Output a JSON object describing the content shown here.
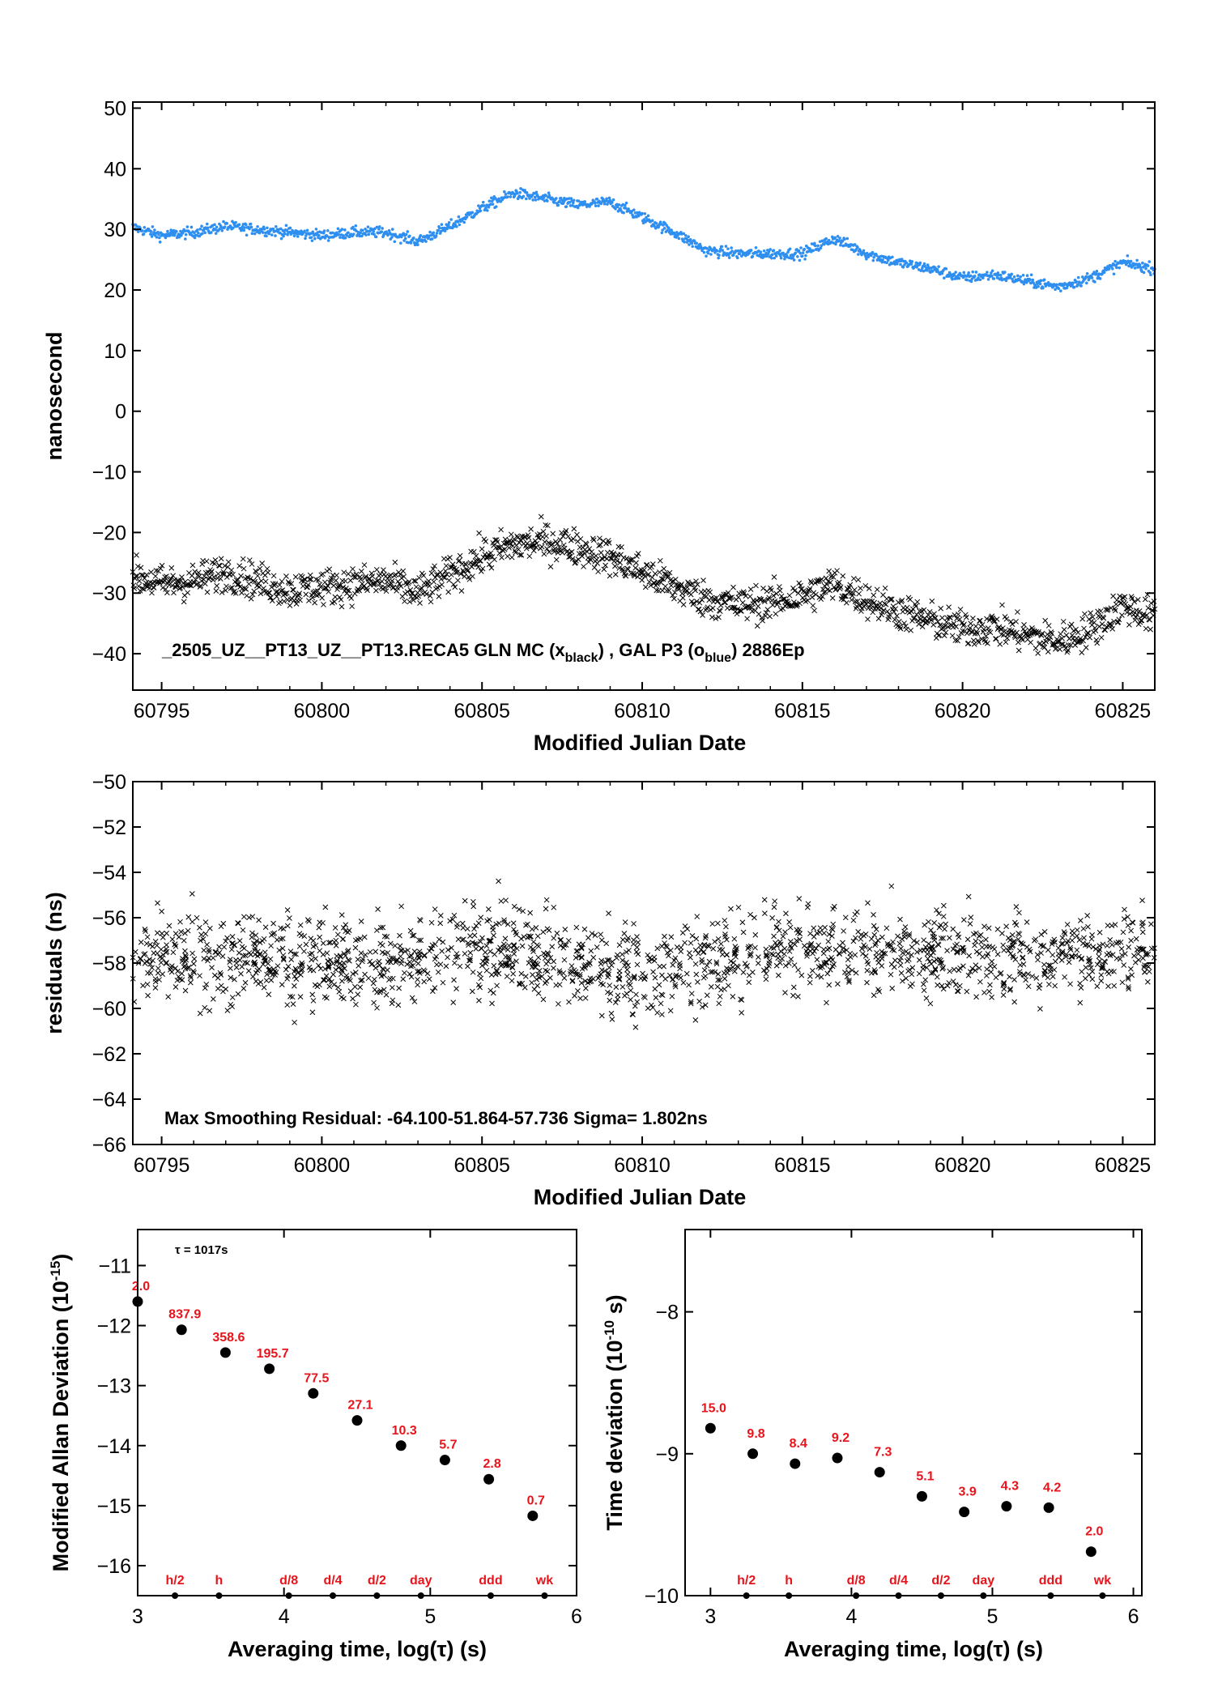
{
  "colors": {
    "black": "#000000",
    "blue": "#2f8ff0",
    "red": "#e8141b"
  },
  "panel1": {
    "ylabel": "nanosecond",
    "xlabel": "Modified Julian Date",
    "xlim": [
      60794.1,
      60826.0
    ],
    "ylim": [
      -46,
      51
    ],
    "xticks": [
      60795,
      60800,
      60805,
      60810,
      60815,
      60820,
      60825
    ],
    "yticks": [
      50,
      40,
      30,
      20,
      10,
      0,
      -10,
      -20,
      -30,
      -40
    ],
    "ytick_labels": [
      "50",
      "40",
      "30",
      "20",
      "10",
      "0",
      "−10",
      "−20",
      "−30",
      "−40"
    ],
    "annotation_main": "_2505_UZ__PT13_UZ__PT13.RECA5     GLN MC (x",
    "annotation_sub1": "black",
    "annotation_mid": ") ,  GAL P3 (o",
    "annotation_sub2": "blue",
    "annotation_end": ")  2886Ep"
  },
  "panel2": {
    "ylabel": "residuals (ns)",
    "xlabel": "Modified Julian Date",
    "xlim": [
      60794.1,
      60826.0
    ],
    "ylim": [
      -66,
      -50
    ],
    "xticks": [
      60795,
      60800,
      60805,
      60810,
      60815,
      60820,
      60825
    ],
    "yticks": [
      -50,
      -52,
      -54,
      -56,
      -58,
      -60,
      -62,
      -64,
      -66
    ],
    "ytick_labels": [
      "−50",
      "−52",
      "−54",
      "−56",
      "−58",
      "−60",
      "−62",
      "−64",
      "−66"
    ],
    "annotation": "Max Smoothing Residual: -64.100-51.864-57.736  Sigma= 1.802ns"
  },
  "panel3": {
    "ylabel": "Modified Allan Deviation (10",
    "ylabel_exp": "-15",
    "ylabel_end": ")",
    "xlabel": "Averaging time, log(τ) (s)",
    "tau_note": "τ = 1017s",
    "xlim": [
      3,
      6
    ],
    "ylim": [
      -16.5,
      -10.4
    ],
    "xticks": [
      3,
      4,
      5,
      6
    ],
    "yticks": [
      -11,
      -12,
      -13,
      -14,
      -15,
      -16
    ],
    "ytick_labels": [
      "−11",
      "−12",
      "−13",
      "−14",
      "−15",
      "−16"
    ],
    "period_marks": [
      {
        "label": "h/2",
        "x": 3.255
      },
      {
        "label": "h",
        "x": 3.556
      },
      {
        "label": "d/8",
        "x": 4.033
      },
      {
        "label": "d/4",
        "x": 4.334
      },
      {
        "label": "d/2",
        "x": 4.635
      },
      {
        "label": "day",
        "x": 4.936
      },
      {
        "label": "ddd",
        "x": 5.413
      },
      {
        "label": "wk",
        "x": 5.781
      }
    ]
  },
  "panel4": {
    "ylabel": "Time deviation (10",
    "ylabel_exp": "-10",
    "ylabel_end": " s)",
    "xlabel": "Averaging time, log(τ) (s)",
    "xlim": [
      2.82,
      6.06
    ],
    "ylim": [
      -10.0,
      -7.42
    ],
    "xticks": [
      3,
      4,
      5,
      6
    ],
    "yticks": [
      -8,
      -9,
      -10
    ],
    "ytick_labels": [
      "−8",
      "−9",
      "−10"
    ],
    "period_marks": [
      {
        "label": "h/2",
        "x": 3.255
      },
      {
        "label": "h",
        "x": 3.556
      },
      {
        "label": "d/8",
        "x": 4.033
      },
      {
        "label": "d/4",
        "x": 4.334
      },
      {
        "label": "d/2",
        "x": 4.635
      },
      {
        "label": "day",
        "x": 4.936
      },
      {
        "label": "ddd",
        "x": 5.413
      },
      {
        "label": "wk",
        "x": 5.781
      }
    ]
  },
  "chart_data": [
    {
      "type": "scatter",
      "xlabel": "Modified Julian Date",
      "ylabel": "nanosecond",
      "xlim": [
        60794.1,
        60826.0
      ],
      "ylim": [
        -46,
        51
      ],
      "series": [
        {
          "name": "GAL P3",
          "marker": "o",
          "color": "#2f8ff0",
          "spread": 0.9,
          "x": [
            60794,
            60795,
            60796,
            60797,
            60798,
            60799,
            60800,
            60801,
            60802,
            60803,
            60804,
            60805,
            60806,
            60807,
            60808,
            60809,
            60810,
            60811,
            60812,
            60813,
            60814,
            60815,
            60816,
            60817,
            60818,
            60819,
            60820,
            60821,
            60822,
            60823,
            60824,
            60825,
            60826
          ],
          "y": [
            30.5,
            29.0,
            29.5,
            30.5,
            30.0,
            29.5,
            29.0,
            29.5,
            29.5,
            28.0,
            30.5,
            33.5,
            36.0,
            35.0,
            34.0,
            34.5,
            32.0,
            29.5,
            26.5,
            26.0,
            26.0,
            26.0,
            28.5,
            26.0,
            24.5,
            23.5,
            22.0,
            22.5,
            21.5,
            20.5,
            22.0,
            24.5,
            23.5
          ]
        },
        {
          "name": "GLN MC",
          "marker": "x",
          "color": "#000000",
          "spread": 3.0,
          "x": [
            60794,
            60795,
            60796,
            60797,
            60798,
            60799,
            60800,
            60801,
            60802,
            60803,
            60804,
            60805,
            60806,
            60807,
            60808,
            60809,
            60810,
            60811,
            60812,
            60813,
            60814,
            60815,
            60816,
            60817,
            60818,
            60819,
            60820,
            60821,
            60822,
            60823,
            60824,
            60825,
            60826
          ],
          "y": [
            -27.0,
            -28.5,
            -28.0,
            -26.5,
            -28.0,
            -29.5,
            -29.0,
            -28.5,
            -28.0,
            -30.0,
            -27.0,
            -24.0,
            -22.0,
            -21.5,
            -22.5,
            -24.0,
            -26.5,
            -29.0,
            -31.0,
            -32.0,
            -31.5,
            -30.5,
            -28.5,
            -31.0,
            -33.0,
            -34.5,
            -36.0,
            -35.5,
            -37.0,
            -38.0,
            -36.0,
            -32.0,
            -34.0
          ]
        }
      ]
    },
    {
      "type": "scatter",
      "xlabel": "Modified Julian Date",
      "ylabel": "residuals (ns)",
      "xlim": [
        60794.1,
        60826.0
      ],
      "ylim": [
        -66,
        -50
      ],
      "series": [
        {
          "marker": "x",
          "color": "#000000",
          "spread": 1.8,
          "x": [
            60794,
            60798,
            60802,
            60806,
            60810,
            60814,
            60818,
            60822,
            60826
          ],
          "y": [
            -57.7,
            -57.9,
            -58.0,
            -57.2,
            -58.6,
            -57.3,
            -57.6,
            -57.8,
            -57.4
          ]
        }
      ]
    },
    {
      "type": "scatter",
      "xlabel": "Averaging time, log(τ) (s)",
      "ylabel": "Modified Allan Deviation (10-15)",
      "xlim": [
        3,
        6
      ],
      "ylim": [
        -16.5,
        -10.4
      ],
      "x": [
        3.0,
        3.3,
        3.6,
        3.9,
        4.2,
        4.5,
        4.8,
        5.1,
        5.4,
        5.7
      ],
      "y": [
        -11.6,
        -12.07,
        -12.45,
        -12.72,
        -13.13,
        -13.58,
        -14.0,
        -14.24,
        -14.56,
        -15.17
      ],
      "labels": [
        "2.0",
        "837.9",
        "358.6",
        "195.7",
        "77.5",
        "27.1",
        "10.3",
        "5.7",
        "2.8",
        "0.7"
      ]
    },
    {
      "type": "scatter",
      "xlabel": "Averaging time, log(τ) (s)",
      "ylabel": "Time deviation (10-10 s)",
      "xlim": [
        2.82,
        6.06
      ],
      "ylim": [
        -10.0,
        -7.42
      ],
      "x": [
        3.0,
        3.3,
        3.6,
        3.9,
        4.2,
        4.5,
        4.8,
        5.1,
        5.4,
        5.7
      ],
      "y": [
        -8.82,
        -9.0,
        -9.07,
        -9.03,
        -9.13,
        -9.3,
        -9.41,
        -9.37,
        -9.38,
        -9.69
      ],
      "labels": [
        "15.0",
        "9.8",
        "8.4",
        "9.2",
        "7.3",
        "5.1",
        "3.9",
        "4.3",
        "4.2",
        "2.0"
      ]
    }
  ]
}
